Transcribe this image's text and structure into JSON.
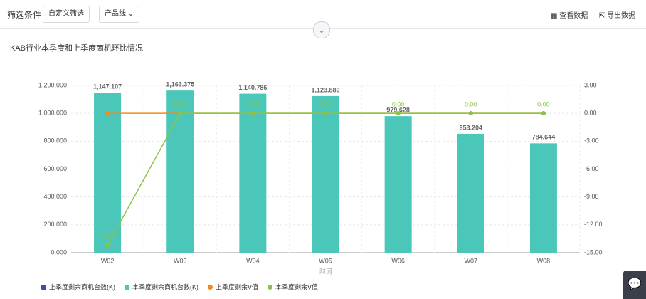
{
  "toolbar": {
    "title": "筛选条件",
    "custom_filter": "自定义筛选",
    "product_line": "产品线",
    "view_data": "查看数据",
    "export_data": "导出数据"
  },
  "chart_data": {
    "type": "bar",
    "title": "KAB行业本季度和上季度商机环比情况",
    "xlabel": "财周",
    "categories": [
      "W02",
      "W03",
      "W04",
      "W05",
      "W06",
      "W07",
      "W08"
    ],
    "series": [
      {
        "name": "上季度剩余商机台数(K)",
        "color": "#3b4bc8",
        "type": "bar",
        "values": [
          null,
          null,
          null,
          null,
          null,
          null,
          null
        ]
      },
      {
        "name": "本季度剩余商机台数(K)",
        "color": "#4ac7b8",
        "type": "bar",
        "values": [
          1147.107,
          1163.375,
          1140.786,
          1123.88,
          979.628,
          853.204,
          784.644
        ],
        "value_labels": [
          "1,147.107",
          "1,163.375",
          "1,140.786",
          "1,123.880",
          "979.628",
          "853.204",
          "784.644"
        ]
      },
      {
        "name": "上季度剩余V值",
        "color": "#f08c1e",
        "type": "line",
        "axis": "y2",
        "values": [
          0,
          0,
          0,
          0,
          0,
          0,
          0
        ]
      },
      {
        "name": "本季度剩余V值",
        "color": "#8bc34a",
        "type": "line",
        "axis": "y2",
        "values": [
          -14.2,
          0,
          0,
          0,
          0,
          0,
          0
        ],
        "value_labels": [
          "-14.20",
          "0.00",
          "0.00",
          "0.00",
          "0.00",
          "0.00",
          "0.00"
        ]
      }
    ],
    "ylim": [
      0,
      1200
    ],
    "yticks": [
      {
        "value": 0,
        "label": "0.000"
      },
      {
        "value": 200,
        "label": "200.000"
      },
      {
        "value": 400,
        "label": "400.000"
      },
      {
        "value": 600,
        "label": "600.000"
      },
      {
        "value": 800,
        "label": "800.000"
      },
      {
        "value": 1000,
        "label": "1,000.000"
      },
      {
        "value": 1200,
        "label": "1,200.000"
      }
    ],
    "y2lim": [
      -15,
      3
    ],
    "y2ticks": [
      {
        "value": -15,
        "label": "-15.00"
      },
      {
        "value": -12,
        "label": "-12.00"
      },
      {
        "value": -9,
        "label": "-9.00"
      },
      {
        "value": -6,
        "label": "-6.00"
      },
      {
        "value": -3,
        "label": "-3.00"
      },
      {
        "value": 0,
        "label": "0.00"
      },
      {
        "value": 3,
        "label": "3.00"
      }
    ],
    "grid": true,
    "legend": "bottom-left"
  }
}
